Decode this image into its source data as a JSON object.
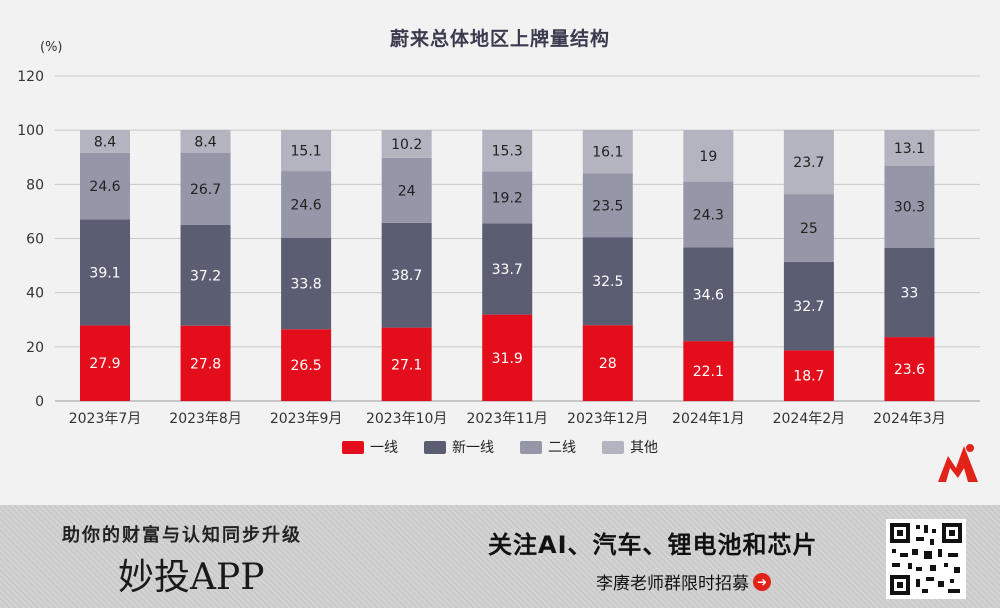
{
  "chart_data": {
    "type": "bar",
    "stacked": true,
    "title": "蔚来总体地区上牌量结构",
    "unit": "(%)",
    "categories": [
      "2023年7月",
      "2023年8月",
      "2023年9月",
      "2023年10月",
      "2023年11月",
      "2023年12月",
      "2024年1月",
      "2024年2月",
      "2024年3月"
    ],
    "ylim": [
      0,
      120
    ],
    "yticks": [
      0,
      20,
      40,
      60,
      80,
      100,
      120
    ],
    "grid": true,
    "legend_position": "bottom",
    "series": [
      {
        "name": "一线",
        "color": "#e30d1b",
        "values": [
          27.9,
          27.8,
          26.5,
          27.1,
          31.9,
          28,
          22.1,
          18.7,
          23.6
        ]
      },
      {
        "name": "新一线",
        "color": "#5b5e73",
        "values": [
          39.1,
          37.2,
          33.8,
          38.7,
          33.7,
          32.5,
          34.6,
          32.7,
          33
        ]
      },
      {
        "name": "二线",
        "color": "#9597a9",
        "values": [
          24.6,
          26.7,
          24.6,
          24,
          19.2,
          23.5,
          24.3,
          25,
          30.3
        ]
      },
      {
        "name": "其他",
        "color": "#b3b4bf",
        "values": [
          8.4,
          8.4,
          15.1,
          10.2,
          15.3,
          16.1,
          19,
          23.7,
          13.1
        ]
      }
    ]
  },
  "banner": {
    "slogan": "助你的财富与认知同步升级",
    "app_name": "妙投APP",
    "headline": "关注AI、汽车、锂电池和芯片",
    "subline": "李赓老师群限时招募",
    "arrow_icon": "right-arrow-icon"
  }
}
